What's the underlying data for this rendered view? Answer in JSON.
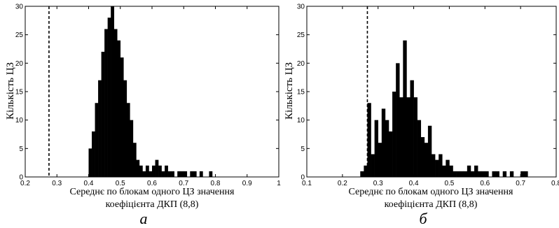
{
  "chart_data": [
    {
      "type": "bar",
      "panel_label": "а",
      "xlabel": [
        "Середнє по блокам одного ЦЗ значення",
        "коефіцієнта ДКП (8,8)"
      ],
      "ylabel": "Кількість ЦЗ",
      "xlim": [
        0.2,
        1.0
      ],
      "ylim": [
        0,
        30
      ],
      "xticks": [
        "0.2",
        "0.3",
        "0.4",
        "0.5",
        "0.6",
        "0.7",
        "0.8",
        "0.9",
        "1"
      ],
      "yticks": [
        "0",
        "5",
        "10",
        "15",
        "20",
        "25",
        "30"
      ],
      "threshold": 0.275,
      "bin_width": 0.01,
      "bins": [
        [
          0.4,
          5
        ],
        [
          0.41,
          8
        ],
        [
          0.42,
          13
        ],
        [
          0.43,
          17
        ],
        [
          0.44,
          22
        ],
        [
          0.45,
          26
        ],
        [
          0.46,
          28
        ],
        [
          0.47,
          30
        ],
        [
          0.48,
          26
        ],
        [
          0.49,
          24
        ],
        [
          0.5,
          21
        ],
        [
          0.51,
          17
        ],
        [
          0.52,
          13
        ],
        [
          0.53,
          10
        ],
        [
          0.54,
          6
        ],
        [
          0.55,
          3
        ],
        [
          0.56,
          2
        ],
        [
          0.57,
          1
        ],
        [
          0.58,
          2
        ],
        [
          0.59,
          1
        ],
        [
          0.6,
          2
        ],
        [
          0.61,
          3
        ],
        [
          0.62,
          2
        ],
        [
          0.63,
          1
        ],
        [
          0.64,
          2
        ],
        [
          0.65,
          1
        ],
        [
          0.66,
          1
        ],
        [
          0.68,
          1
        ],
        [
          0.69,
          1
        ],
        [
          0.7,
          1
        ],
        [
          0.72,
          1
        ],
        [
          0.73,
          1
        ],
        [
          0.75,
          1
        ],
        [
          0.78,
          1
        ]
      ]
    },
    {
      "type": "bar",
      "panel_label": "б",
      "xlabel": [
        "Середнє по блокам одного ЦЗ значення",
        "коефіцієнта ДКП (8,8)"
      ],
      "ylabel": "Кількість ЦЗ",
      "xlim": [
        0.1,
        0.8
      ],
      "ylim": [
        0,
        30
      ],
      "xticks": [
        "0.1",
        "0.2",
        "0.3",
        "0.4",
        "0.5",
        "0.6",
        "0.7",
        "0.8"
      ],
      "yticks": [
        "0",
        "5",
        "10",
        "15",
        "20",
        "25",
        "30"
      ],
      "threshold": 0.27,
      "bin_width": 0.01,
      "bins": [
        [
          0.25,
          1
        ],
        [
          0.26,
          2
        ],
        [
          0.27,
          13
        ],
        [
          0.28,
          4
        ],
        [
          0.29,
          10
        ],
        [
          0.3,
          6
        ],
        [
          0.31,
          12
        ],
        [
          0.32,
          10
        ],
        [
          0.33,
          8
        ],
        [
          0.34,
          15
        ],
        [
          0.35,
          20
        ],
        [
          0.36,
          14
        ],
        [
          0.37,
          24
        ],
        [
          0.38,
          14
        ],
        [
          0.39,
          17
        ],
        [
          0.4,
          14
        ],
        [
          0.41,
          10
        ],
        [
          0.42,
          7
        ],
        [
          0.43,
          6
        ],
        [
          0.44,
          9
        ],
        [
          0.45,
          4
        ],
        [
          0.46,
          3
        ],
        [
          0.47,
          4
        ],
        [
          0.48,
          2
        ],
        [
          0.49,
          3
        ],
        [
          0.5,
          2
        ],
        [
          0.51,
          1
        ],
        [
          0.52,
          1
        ],
        [
          0.53,
          1
        ],
        [
          0.54,
          1
        ],
        [
          0.55,
          2
        ],
        [
          0.56,
          1
        ],
        [
          0.57,
          2
        ],
        [
          0.58,
          1
        ],
        [
          0.59,
          1
        ],
        [
          0.6,
          1
        ],
        [
          0.62,
          1
        ],
        [
          0.63,
          1
        ],
        [
          0.65,
          1
        ],
        [
          0.67,
          1
        ],
        [
          0.7,
          1
        ],
        [
          0.71,
          1
        ]
      ]
    }
  ]
}
